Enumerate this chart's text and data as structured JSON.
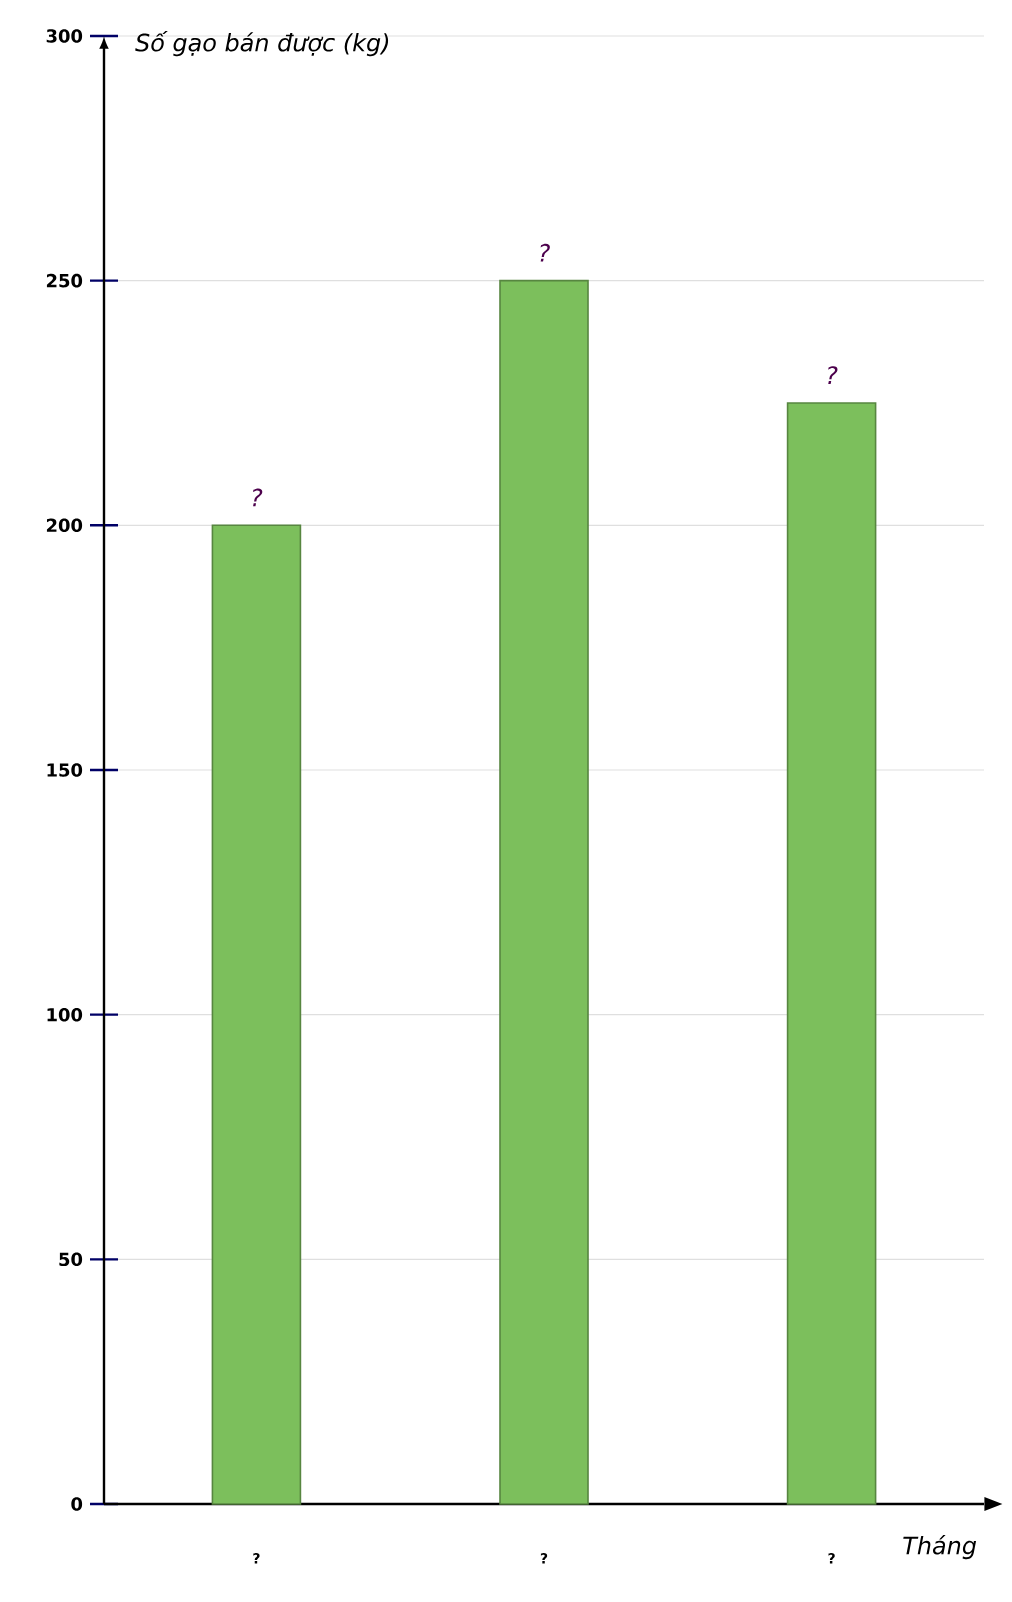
{
  "chart_data": {
    "type": "bar",
    "ylabel": "Số gạo bán được (kg)",
    "xlabel": "Tháng",
    "categories": [
      "?",
      "?",
      "?"
    ],
    "values": [
      200,
      250,
      225
    ],
    "value_labels": [
      "?",
      "?",
      "?"
    ],
    "color": "#7cbf5c",
    "ylim": [
      0,
      300
    ],
    "yticks": [
      0,
      50,
      100,
      150,
      200,
      250,
      300
    ],
    "grid": "y"
  }
}
